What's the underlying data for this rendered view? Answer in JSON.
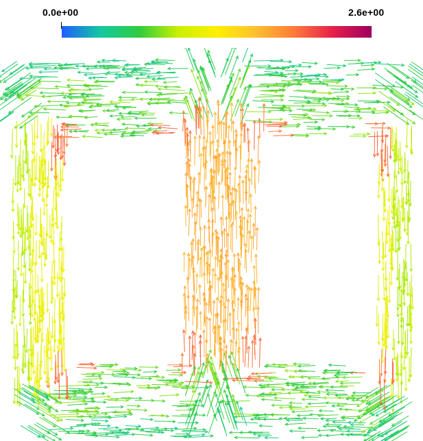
{
  "colorbar": {
    "min_label": "0.0e+00",
    "max_label": "2.6e+00",
    "min_value": 0.0,
    "max_value": 2.6,
    "colormap": [
      "#1f5eff",
      "#14c8a0",
      "#2ecc40",
      "#c8f000",
      "#ffef00",
      "#ffc030",
      "#ff7a3a",
      "#e6204a",
      "#9e0060"
    ]
  },
  "field": {
    "description_colors": {
      "low": "#1ec8b4",
      "mid": "#b4e632",
      "high": "#fac83c",
      "peak": "#ff7a3a"
    }
  }
}
